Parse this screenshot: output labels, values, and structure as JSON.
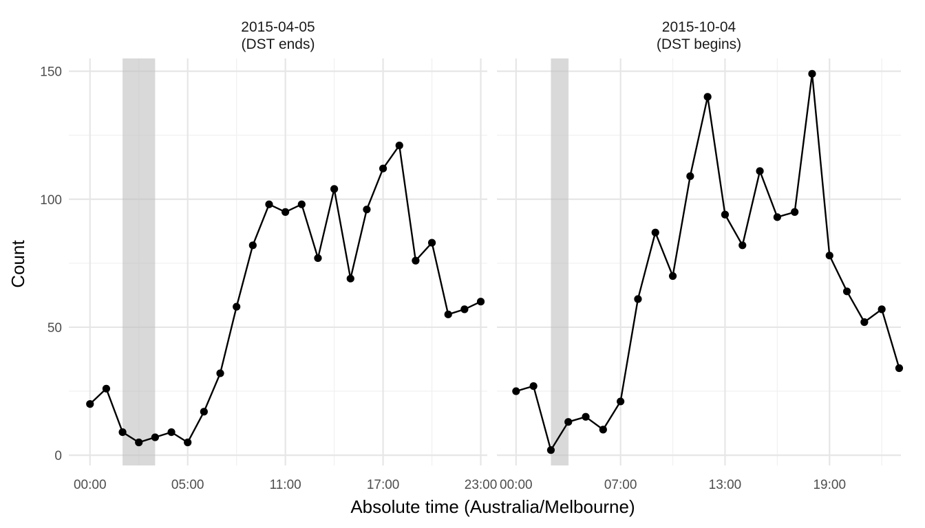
{
  "chart_data": {
    "type": "line",
    "xlabel": "Absolute time (Australia/Melbourne)",
    "ylabel": "Count",
    "ylim": [
      -4,
      155
    ],
    "yticks": [
      0,
      50,
      100,
      150
    ],
    "grid": true,
    "panels": [
      {
        "title_line1": "2015-04-05",
        "title_line2": "(DST ends)",
        "xlim": [
          -1.3,
          24.4
        ],
        "xticks": [
          {
            "x": 0,
            "label": "00:00"
          },
          {
            "x": 6,
            "label": "05:00"
          },
          {
            "x": 12,
            "label": "11:00"
          },
          {
            "x": 18,
            "label": "17:00"
          },
          {
            "x": 24,
            "label": "23:00"
          }
        ],
        "shade": [
          2,
          4
        ],
        "x": [
          0,
          1,
          2,
          3,
          4,
          5,
          6,
          7,
          8,
          9,
          10,
          11,
          12,
          13,
          14,
          15,
          16,
          17,
          18,
          19,
          20,
          21,
          22,
          23,
          24
        ],
        "values": [
          20,
          26,
          9,
          5,
          7,
          9,
          5,
          17,
          32,
          58,
          82,
          98,
          95,
          98,
          77,
          104,
          69,
          96,
          112,
          121,
          76,
          83,
          55,
          57,
          60
        ]
      },
      {
        "title_line1": "2015-10-04",
        "title_line2": "(DST begins)",
        "xlim": [
          -1.1,
          22.1
        ],
        "xticks": [
          {
            "x": 0,
            "label": "00:00"
          },
          {
            "x": 6,
            "label": "07:00"
          },
          {
            "x": 12,
            "label": "13:00"
          },
          {
            "x": 18,
            "label": "19:00"
          }
        ],
        "shade": [
          2,
          3
        ],
        "x": [
          0,
          1,
          2,
          3,
          4,
          5,
          6,
          7,
          8,
          9,
          10,
          11,
          12,
          13,
          14,
          15,
          16,
          17,
          18,
          19,
          20,
          21,
          22
        ],
        "values": [
          25,
          27,
          2,
          13,
          15,
          10,
          21,
          61,
          87,
          70,
          109,
          140,
          94,
          82,
          111,
          93,
          95,
          149,
          78,
          64,
          52,
          57,
          34
        ]
      }
    ]
  }
}
